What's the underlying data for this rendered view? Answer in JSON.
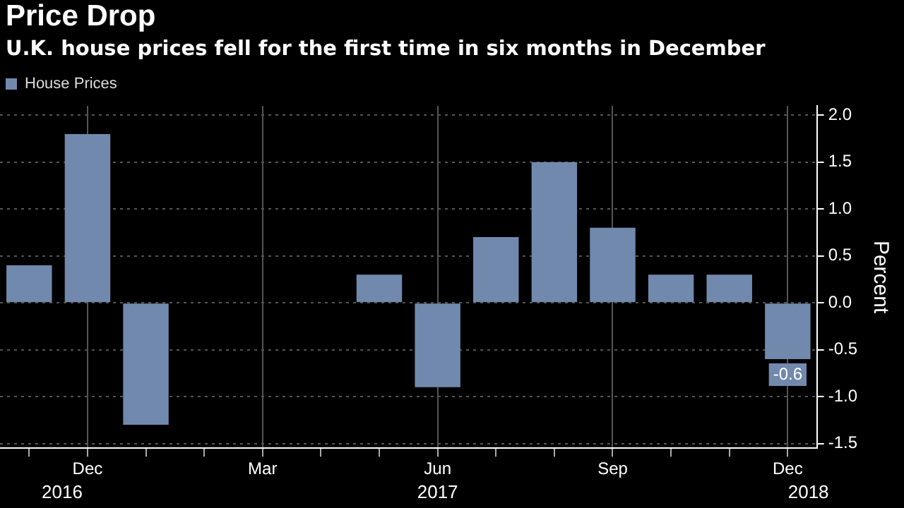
{
  "chart_data": {
    "type": "bar",
    "title": "Price Drop",
    "subtitle": "U.K. house prices fell for the first time in six months in December",
    "ylabel": "Percent",
    "categories": [
      null,
      "Dec",
      null,
      null,
      "Mar",
      null,
      null,
      "Jun",
      null,
      null,
      "Sep",
      null,
      null,
      "Dec"
    ],
    "series": [
      {
        "name": "House Prices",
        "color": "#7189ad",
        "values": [
          0.4,
          1.8,
          -1.3,
          0.0,
          0.0,
          0.0,
          0.3,
          -0.9,
          0.7,
          1.5,
          0.8,
          0.3,
          0.3,
          -0.6
        ],
        "value_labels": [
          null,
          null,
          null,
          null,
          null,
          null,
          null,
          null,
          null,
          null,
          null,
          null,
          null,
          "-0.6"
        ]
      }
    ],
    "ylim": [
      -1.55,
      2.1
    ],
    "yticks": [
      {
        "value": -1.5,
        "label": "-1.5"
      },
      {
        "value": -1,
        "label": "-1.0"
      },
      {
        "value": -0.5,
        "label": "-0.5"
      },
      {
        "value": 0,
        "label": "0.0"
      },
      {
        "value": 0.5,
        "label": "0.5"
      },
      {
        "value": 1,
        "label": "1.0"
      },
      {
        "value": 1.5,
        "label": "1.5"
      },
      {
        "value": 2,
        "label": "2.0"
      }
    ],
    "annotations": [
      "2016",
      "2017",
      "2018"
    ],
    "grid": true,
    "legend": "top left"
  }
}
